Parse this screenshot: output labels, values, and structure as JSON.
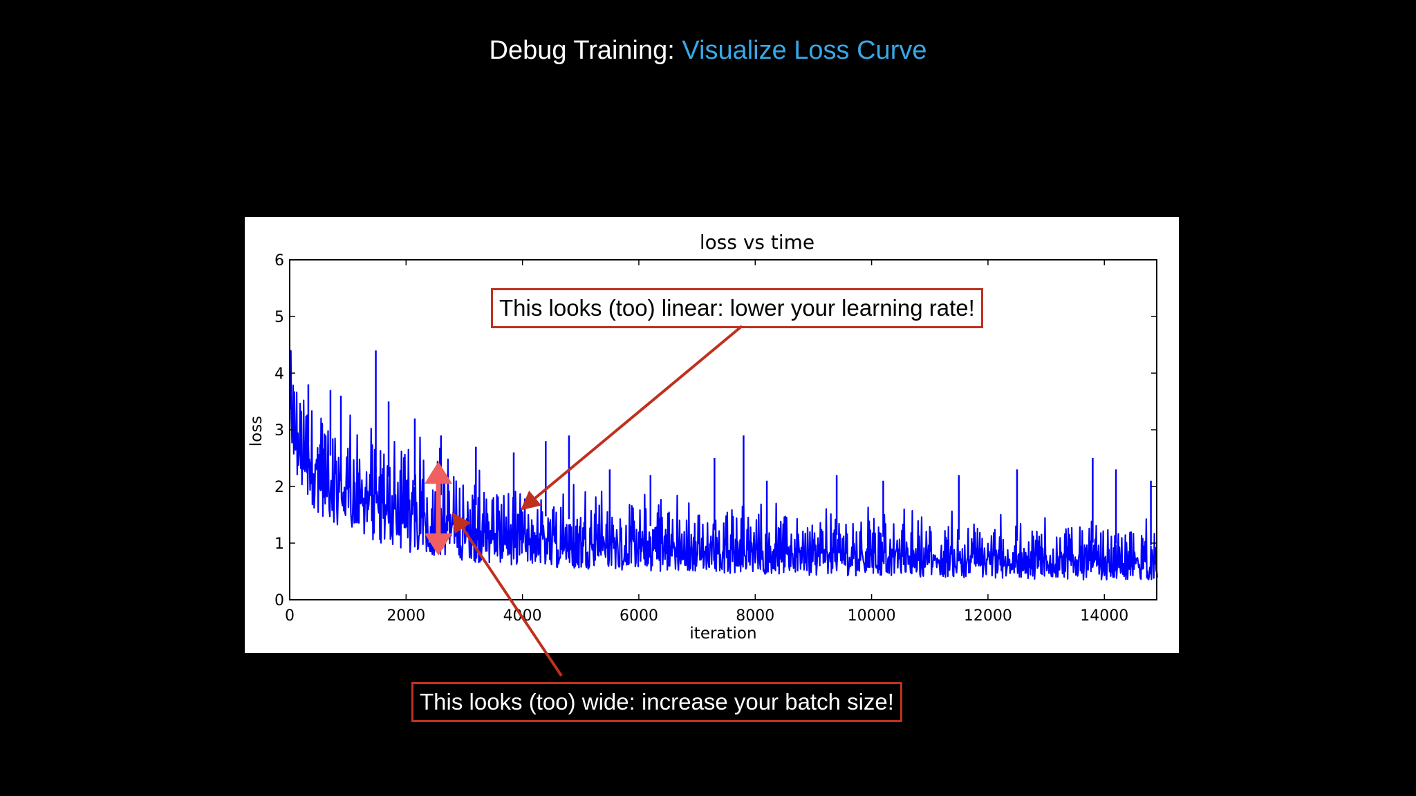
{
  "slide": {
    "title_prefix": "Debug Training: ",
    "title_accent": "Visualize Loss Curve"
  },
  "annotations": {
    "learning_rate": "This looks (too) linear: lower your learning rate!",
    "batch_size": "This looks (too) wide: increase your batch size!"
  },
  "colors": {
    "background": "#000000",
    "title_accent": "#37a9e8",
    "series": "#0000ff",
    "annotation_border": "#c0301f",
    "arrow": "#c0301f",
    "width_marker": "#f06060"
  },
  "chart_data": {
    "type": "line",
    "title": "loss vs time",
    "xlabel": "iteration",
    "ylabel": "loss",
    "xlim": [
      0,
      14900
    ],
    "ylim": [
      0,
      6
    ],
    "xticks": [
      0,
      2000,
      4000,
      6000,
      8000,
      10000,
      12000,
      14000
    ],
    "yticks": [
      0,
      1,
      2,
      3,
      4,
      5,
      6
    ],
    "grid": false,
    "series": [
      {
        "color": "#0000ff",
        "envelope": {
          "x": [
            0,
            50,
            200,
            500,
            1000,
            1500,
            2000,
            2500,
            3000,
            3500,
            4000,
            5000,
            6000,
            7000,
            8000,
            9000,
            10000,
            11000,
            12000,
            13000,
            14000,
            14900
          ],
          "lower": [
            2.8,
            2.3,
            1.9,
            1.5,
            1.2,
            1.0,
            0.85,
            0.75,
            0.68,
            0.63,
            0.6,
            0.55,
            0.5,
            0.47,
            0.45,
            0.43,
            0.42,
            0.4,
            0.38,
            0.36,
            0.35,
            0.34
          ],
          "upper": [
            4.6,
            4.1,
            3.6,
            3.3,
            3.0,
            2.8,
            2.6,
            2.35,
            2.15,
            2.0,
            1.9,
            1.75,
            1.65,
            1.55,
            1.5,
            1.45,
            1.4,
            1.35,
            1.3,
            1.3,
            1.25,
            1.2
          ]
        },
        "spikes": [
          [
            320,
            3.8
          ],
          [
            700,
            3.7
          ],
          [
            880,
            3.6
          ],
          [
            1480,
            4.4
          ],
          [
            1700,
            3.5
          ],
          [
            2150,
            3.2
          ],
          [
            2600,
            2.9
          ],
          [
            3200,
            2.7
          ],
          [
            3850,
            2.6
          ],
          [
            4400,
            2.8
          ],
          [
            4800,
            2.9
          ],
          [
            5500,
            2.3
          ],
          [
            6200,
            2.2
          ],
          [
            7300,
            2.5
          ],
          [
            7800,
            2.9
          ],
          [
            8200,
            2.1
          ],
          [
            9400,
            2.2
          ],
          [
            10200,
            2.1
          ],
          [
            11500,
            2.2
          ],
          [
            12500,
            2.3
          ],
          [
            13800,
            2.5
          ],
          [
            14200,
            2.3
          ],
          [
            14800,
            2.1
          ]
        ]
      }
    ]
  }
}
